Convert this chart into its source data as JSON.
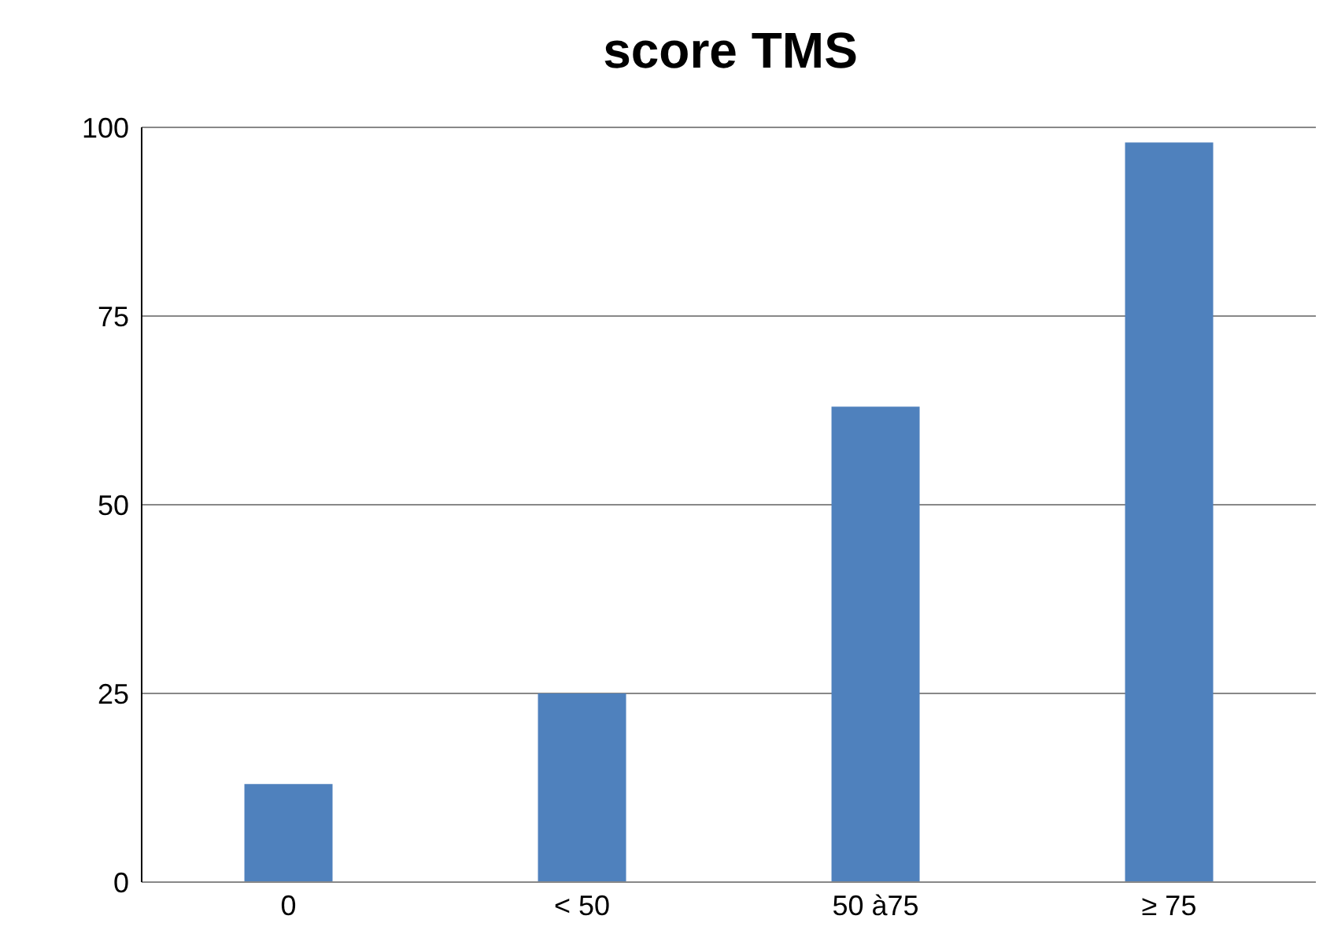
{
  "chart_data": {
    "type": "bar",
    "title": "score TMS",
    "categories": [
      "0",
      "< 50",
      "50 à75",
      "≥ 75"
    ],
    "values": [
      13,
      25,
      63,
      98
    ],
    "color": "#4f81bd",
    "ylim": [
      0,
      100
    ],
    "yticks": [
      0,
      25,
      50,
      75,
      100
    ],
    "grid": "y",
    "legend": false
  }
}
